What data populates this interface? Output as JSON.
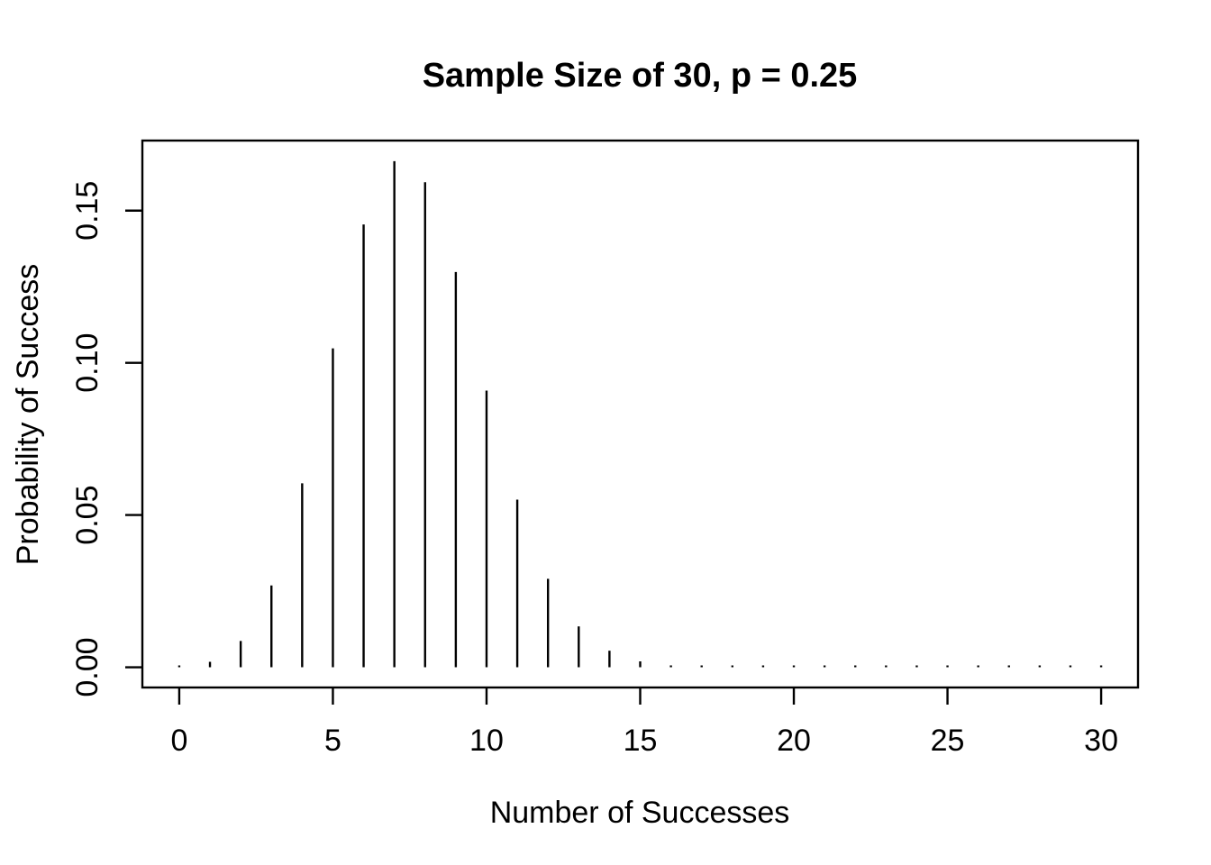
{
  "figure": {
    "background_color": "#ffffff",
    "line_color": "#000000"
  },
  "chart_data": {
    "type": "bar",
    "style": "stem-plot (R type='h' thin vertical lines)",
    "title": "Sample Size of 30, p = 0.25",
    "xlabel": "Number of Successes",
    "ylabel": "Probability of Success",
    "x": [
      0,
      1,
      2,
      3,
      4,
      5,
      6,
      7,
      8,
      9,
      10,
      11,
      12,
      13,
      14,
      15,
      16,
      17,
      18,
      19,
      20,
      21,
      22,
      23,
      24,
      25,
      26,
      27,
      28,
      29,
      30
    ],
    "values": [
      0.000179,
      0.001786,
      0.008631,
      0.026854,
      0.060422,
      0.104731,
      0.145459,
      0.166239,
      0.159313,
      0.129818,
      0.090872,
      0.055074,
      0.029067,
      0.013416,
      0.00543,
      0.001931,
      0.000603,
      0.000166,
      4e-05,
      8e-06,
      2e-06,
      0,
      0,
      0,
      0,
      0,
      0,
      0,
      0,
      0,
      0
    ],
    "xticks": {
      "values": [
        0,
        5,
        10,
        15,
        20,
        25,
        30
      ],
      "labels": [
        "0",
        "5",
        "10",
        "15",
        "20",
        "25",
        "30"
      ]
    },
    "yticks": {
      "values": [
        0.0,
        0.05,
        0.1,
        0.15
      ],
      "labels": [
        "0.00",
        "0.05",
        "0.10",
        "0.15"
      ]
    },
    "xlim": [
      -1.2,
      31.2
    ],
    "ylim": [
      -0.006654,
      0.173012
    ],
    "grid": false,
    "legend": "none"
  }
}
